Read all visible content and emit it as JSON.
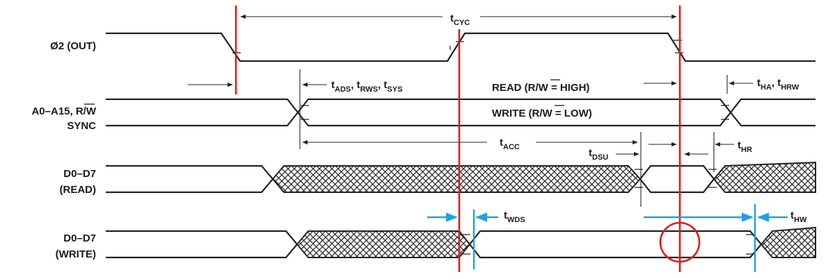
{
  "signals": [
    {
      "id": "phi2",
      "lines": [
        "Ø2 (OUT)"
      ]
    },
    {
      "id": "addr",
      "lines": [
        "A0–A15, R/W",
        "SYNC"
      ]
    },
    {
      "id": "dread",
      "lines": [
        "D0–D7",
        "(READ)"
      ]
    },
    {
      "id": "dwrite",
      "lines": [
        "D0–D7",
        "(WRITE)"
      ]
    }
  ],
  "params": {
    "tcyc": {
      "main": "t",
      "sub": "CYC"
    },
    "tads": {
      "main": "t",
      "sub": "ADS",
      "sep": ", "
    },
    "trws": {
      "main": "t",
      "sub": "RWS",
      "sep": ", "
    },
    "tsys": {
      "main": "t",
      "sub": "SYS"
    },
    "tha": {
      "main": "t",
      "sub": "HA",
      "sep": ", "
    },
    "thrw": {
      "main": "t",
      "sub": "HRW"
    },
    "tacc": {
      "main": "t",
      "sub": "ACC"
    },
    "tdsu": {
      "main": "t",
      "sub": "DSU"
    },
    "thr": {
      "main": "t",
      "sub": "HR"
    },
    "twds": {
      "main": "t",
      "sub": "WDS"
    },
    "thw": {
      "main": "t",
      "sub": "HW"
    }
  },
  "annotations": {
    "read_note": "READ (R/W = HIGH)",
    "write_note": "WRITE (R/W = LOW)"
  },
  "colors": {
    "overlay_red": "#e01b1b",
    "overlay_blue": "#1ea0e6",
    "waveform": "#222222",
    "hatch": "#2a2a2a"
  }
}
